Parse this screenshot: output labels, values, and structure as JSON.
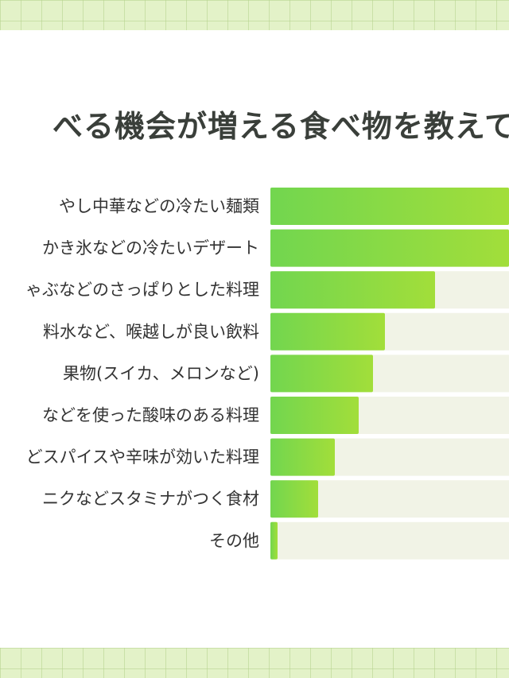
{
  "header": {
    "title": "べる機会が増える食べ物を教えて"
  },
  "colors": {
    "bar_start": "#72d64f",
    "bar_end": "#a2de3a",
    "track": "#f1f3e6",
    "band": "#e3f2c8",
    "text": "#333333"
  },
  "chart_data": {
    "type": "bar",
    "orientation": "horizontal",
    "title": "べる機会が増える食べ物を教えて",
    "xlabel": "",
    "ylabel": "",
    "categories": [
      "やし中華などの冷たい麺類",
      "かき氷などの冷たいデザート",
      "ゃぶなどのさっぱりとした料理",
      "料水など、喉越しが良い飲料",
      "果物(スイカ、メロンなど)",
      "などを使った酸味のある料理",
      "どスパイスや辛味が効いた料理",
      "ニクなどスタミナがつく食材",
      "その他"
    ],
    "values": [
      100,
      100,
      69,
      48,
      43,
      37,
      27,
      20,
      3
    ],
    "xlim": [
      0,
      100
    ],
    "grid": false,
    "legend": "none"
  }
}
